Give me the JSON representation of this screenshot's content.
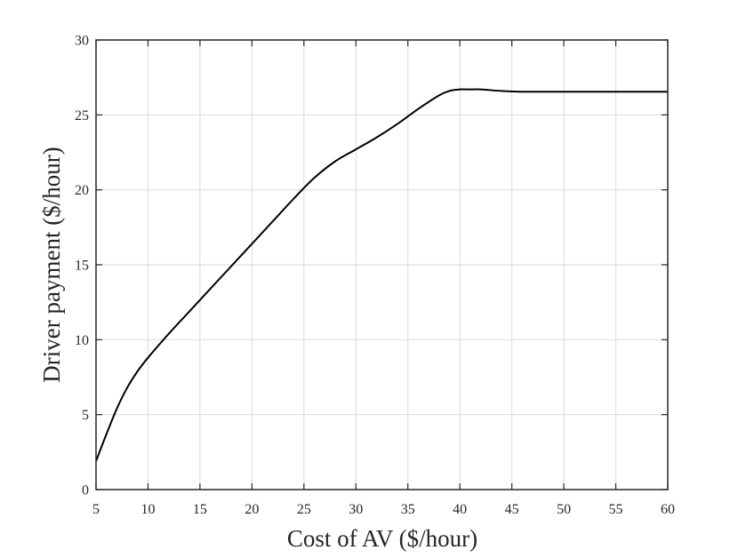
{
  "chart_data": {
    "type": "line",
    "title": "",
    "xlabel": "Cost of AV ($/hour)",
    "ylabel": "Driver payment ($/hour)",
    "xlim": [
      5,
      60
    ],
    "ylim": [
      0,
      30
    ],
    "xticks": [
      5,
      10,
      15,
      20,
      25,
      30,
      35,
      40,
      45,
      50,
      55,
      60
    ],
    "yticks": [
      0,
      5,
      10,
      15,
      20,
      25,
      30
    ],
    "grid": true,
    "legend": "none",
    "colors": {
      "line": "#000000",
      "grid": "#dfdfdf",
      "axes": "#262626"
    },
    "series": [
      {
        "x": [
          5,
          6,
          7,
          8,
          9,
          10,
          12,
          14,
          16,
          18,
          20,
          22,
          24,
          26,
          28,
          30,
          32,
          34,
          36,
          38,
          39,
          40,
          41,
          42,
          44,
          46,
          50,
          55,
          60
        ],
        "y": [
          1.9,
          3.7,
          5.4,
          6.8,
          7.9,
          8.8,
          10.4,
          11.9,
          13.4,
          14.9,
          16.4,
          17.9,
          19.4,
          20.8,
          21.9,
          22.7,
          23.5,
          24.4,
          25.4,
          26.3,
          26.6,
          26.7,
          26.7,
          26.7,
          26.6,
          26.55,
          26.55,
          26.55,
          26.55
        ]
      }
    ]
  }
}
